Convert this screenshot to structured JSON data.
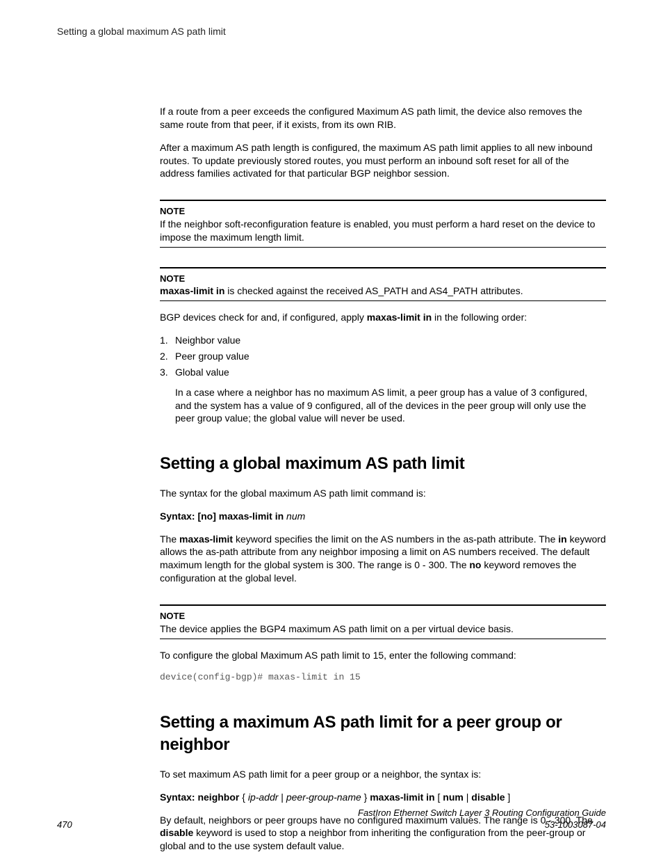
{
  "runningHead": "Setting a global maximum AS path limit",
  "intro": {
    "p1": "If a route from a peer exceeds the configured Maximum AS path limit, the device also removes the same route from that peer, if it exists, from its own RIB.",
    "p2": "After a maximum AS path length is configured, the maximum AS path limit applies to all new inbound routes. To update previously stored routes, you must perform an inbound soft reset for all of the address families activated for that particular BGP neighbor session."
  },
  "note1": {
    "label": "NOTE",
    "body": "If the neighbor soft-reconfiguration feature is enabled, you must perform a hard reset on the device to impose the maximum length limit."
  },
  "note2": {
    "label": "NOTE",
    "boldLead": "maxas-limit in",
    "rest": " is checked against the received AS_PATH and AS4_PATH attributes."
  },
  "orderIntro": {
    "pre": "BGP devices check for and, if configured, apply ",
    "bold": "maxas-limit in",
    "post": " in the following order:"
  },
  "orderList": [
    "Neighbor value",
    "Peer group value",
    "Global value"
  ],
  "orderExplain": "In a case where a neighbor has no maximum AS limit, a peer group has a value of 3 configured, and the system has a value of 9 configured, all of the devices in the peer group will only use the peer group value; the global value will never be used.",
  "sec1": {
    "title": "Setting a global maximum AS path limit",
    "p1": "The syntax for the global maximum AS path limit command is:",
    "syntax": {
      "bold": "Syntax: [no] maxas-limit in ",
      "italic": "num"
    },
    "p2": {
      "a": "The ",
      "b": "maxas-limit",
      "c": " keyword specifies the limit on the AS numbers in the as-path attribute. The ",
      "d": "in",
      "e": " keyword allows the as-path attribute from any neighbor imposing a limit on AS numbers received. The default maximum length for the global system is 300. The range is 0 - 300. The ",
      "f": "no",
      "g": " keyword removes the configuration at the global level."
    },
    "note": {
      "label": "NOTE",
      "body": "The device applies the BGP4 maximum AS path limit on a per virtual device basis."
    },
    "p3": "To configure the global Maximum AS path limit to 15, enter the following command:",
    "code": "device(config-bgp)# maxas-limit in 15"
  },
  "sec2": {
    "title": "Setting a maximum AS path limit for a peer group or neighbor",
    "p1": "To set maximum AS path limit for a peer group or a neighbor, the syntax is:",
    "syntax": {
      "a": "Syntax: neighbor",
      "b": " { ",
      "c": "ip-addr",
      "d": " | ",
      "e": "peer-group-name",
      "f": " } ",
      "g": "maxas-limit in",
      "h": " [ ",
      "i": "num",
      "j": " | ",
      "k": "disable",
      "l": " ]"
    },
    "p2": {
      "a": "By default, neighbors or peer groups have no configured maximum values. The range is 0 - 300. The ",
      "b": "disable",
      "c": " keyword is used to stop a neighbor from inheriting the configuration from the peer-group or global and to the use system default value."
    }
  },
  "footer": {
    "pageNum": "470",
    "titleLine": "FastIron Ethernet Switch Layer 3 Routing Configuration Guide",
    "docNum": "53-1003087-04"
  }
}
